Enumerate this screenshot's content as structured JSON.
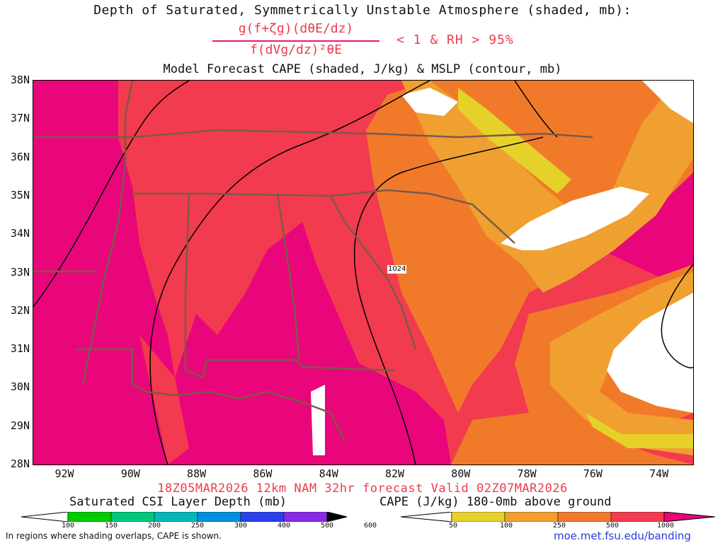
{
  "header": {
    "title": "Depth of Saturated, Symmetrically Unstable Atmosphere (shaded, mb):",
    "numerator": "g(f+ζg)(dθE/dz)",
    "denominator": "f(dVg/dz)²θE",
    "condition": "< 1 & RH > 95%",
    "subtitle": "Model Forecast CAPE (shaded, J/kg) & MSLP (contour, mb)"
  },
  "map": {
    "lat_labels": [
      "38N",
      "37N",
      "36N",
      "35N",
      "34N",
      "33N",
      "32N",
      "31N",
      "30N",
      "29N",
      "28N"
    ],
    "lon_labels": [
      "92W",
      "90W",
      "88W",
      "86W",
      "84W",
      "82W",
      "80W",
      "78W",
      "76W",
      "74W"
    ],
    "isobar_label": "1024",
    "colors": {
      "cape_1000": "#e8067a",
      "cape_500": "#f23b4e",
      "cape_250": "#f07a2a",
      "cape_100": "#f0a030",
      "cape_50": "#e6d12a",
      "state_borders": "#7a5a4a",
      "isobars": "#000000"
    }
  },
  "valid_line": "18Z05MAR2026 12km NAM 32hr forecast Valid 02Z07MAR2026",
  "colorbar_csi": {
    "title": "Saturated CSI Layer Depth (mb)",
    "ticks": [
      "100",
      "150",
      "200",
      "250",
      "300",
      "400",
      "500",
      "600"
    ],
    "colors": [
      "#ffffff",
      "#00cc00",
      "#00c87a",
      "#00b8b8",
      "#0090e0",
      "#2a40e8",
      "#8a2ae8",
      "#000000"
    ]
  },
  "colorbar_cape": {
    "title": "CAPE (J/kg) 180-0mb above ground",
    "ticks": [
      "50",
      "100",
      "250",
      "500",
      "1000"
    ],
    "colors": [
      "#ffffff",
      "#e6d12a",
      "#f0a030",
      "#f07a2a",
      "#f23b4e",
      "#e8067a"
    ]
  },
  "footer": {
    "note": "In regions where shading overlaps, CAPE is shown.",
    "url": "moe.met.fsu.edu/banding"
  }
}
